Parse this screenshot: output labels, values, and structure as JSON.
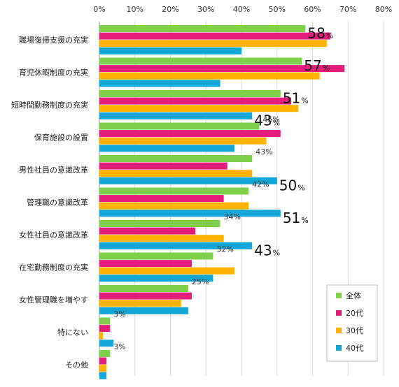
{
  "chart_data": {
    "type": "bar",
    "orientation": "horizontal",
    "xlim": [
      0,
      80
    ],
    "x_ticks": [
      "0%",
      "10%",
      "20%",
      "30%",
      "40%",
      "50%",
      "60%",
      "70%",
      "80%"
    ],
    "grid": true,
    "legend_position": "bottom-right",
    "categories": [
      "職場復帰支援の充実",
      "育児休暇制度の充実",
      "短時間勤務制度の充実",
      "保育施設の設置",
      "男性社員の意識改革",
      "管理職の意識改革",
      "女性社員の意識改革",
      "在宅勤務制度の充実",
      "女性管理職を増やす",
      "特にない",
      "その他"
    ],
    "series": [
      {
        "name": "全体",
        "color": "#7ed04b",
        "values": [
          58,
          57,
          51,
          45,
          43,
          42,
          34,
          32,
          25,
          3,
          3
        ]
      },
      {
        "name": "20代",
        "color": "#e21d7b",
        "values": [
          65,
          69,
          54,
          51,
          36,
          35,
          27,
          26,
          26,
          3,
          2
        ]
      },
      {
        "name": "30代",
        "color": "#ffb300",
        "values": [
          64,
          62,
          56,
          47,
          43,
          42,
          35,
          38,
          23,
          1,
          2
        ]
      },
      {
        "name": "40代",
        "color": "#12a7d6",
        "values": [
          40,
          34,
          43,
          38,
          50,
          51,
          43,
          32,
          25,
          4,
          2
        ]
      }
    ],
    "annotations": [
      {
        "category": 0,
        "series": 0,
        "text": "58",
        "unit": "%",
        "size": "big"
      },
      {
        "category": 1,
        "series": 0,
        "text": "57",
        "unit": "%",
        "size": "big"
      },
      {
        "category": 2,
        "series": 0,
        "text": "51",
        "unit": "%",
        "size": "big"
      },
      {
        "category": 2,
        "series": 3,
        "text": "43",
        "unit": "%",
        "size": "big"
      },
      {
        "category": 3,
        "series": 0,
        "text": "45%",
        "size": "small"
      },
      {
        "category": 4,
        "series": 0,
        "text": "43%",
        "size": "small"
      },
      {
        "category": 4,
        "series": 3,
        "text": "50",
        "unit": "%",
        "size": "big"
      },
      {
        "category": 5,
        "series": 0,
        "text": "42%",
        "size": "small"
      },
      {
        "category": 5,
        "series": 3,
        "text": "51",
        "unit": "%",
        "size": "big"
      },
      {
        "category": 6,
        "series": 0,
        "text": "34%",
        "size": "small"
      },
      {
        "category": 6,
        "series": 3,
        "text": "43",
        "unit": "%",
        "size": "big"
      },
      {
        "category": 7,
        "series": 0,
        "text": "32%",
        "size": "small"
      },
      {
        "category": 8,
        "series": 0,
        "text": "25%",
        "size": "small"
      },
      {
        "category": 9,
        "series": 0,
        "text": "3%",
        "size": "small"
      },
      {
        "category": 10,
        "series": 0,
        "text": "3%",
        "size": "small"
      }
    ]
  }
}
